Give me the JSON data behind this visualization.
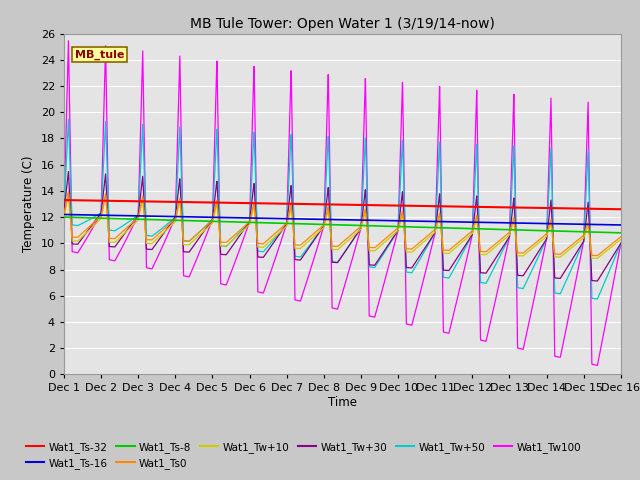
{
  "title": "MB Tule Tower: Open Water 1 (3/19/14-now)",
  "xlabel": "Time",
  "ylabel": "Temperature (C)",
  "xlim": [
    0,
    15
  ],
  "ylim": [
    0,
    26
  ],
  "yticks": [
    0,
    2,
    4,
    6,
    8,
    10,
    12,
    14,
    16,
    18,
    20,
    22,
    24,
    26
  ],
  "xtick_labels": [
    "Dec 1",
    "Dec 2",
    "Dec 3",
    "Dec 4",
    "Dec 5",
    "Dec 6",
    "Dec 7",
    "Dec 8",
    "Dec 9",
    "Dec 10",
    "Dec 11",
    "Dec 12",
    "Dec 13",
    "Dec 14",
    "Dec 15",
    "Dec 16"
  ],
  "bg_color": "#e8e8e8",
  "fig_color": "#d8d8d8",
  "grid_color": "white",
  "series_colors": {
    "Wat1_Ts-32": "#ff0000",
    "Wat1_Ts-16": "#0000dd",
    "Wat1_Ts-8": "#00cc00",
    "Wat1_Ts0": "#ff8800",
    "Wat1_Tw+10": "#cccc00",
    "Wat1_Tw+30": "#880088",
    "Wat1_Tw+50": "#00cccc",
    "Wat1_Tw100": "#ff00ff"
  },
  "legend_rows": [
    [
      "Wat1_Ts-32",
      "Wat1_Ts-16",
      "Wat1_Ts-8",
      "Wat1_Ts0",
      "Wat1_Tw+10",
      "Wat1_Tw+30"
    ],
    [
      "Wat1_Tw+50",
      "Wat1_Tw100"
    ]
  ]
}
